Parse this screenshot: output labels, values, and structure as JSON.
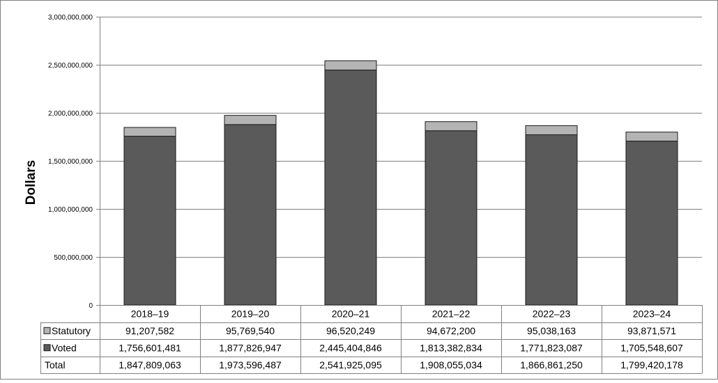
{
  "chart_data": {
    "type": "bar",
    "stacked": true,
    "ylabel": "Dollars",
    "ylim": [
      0,
      3000000000
    ],
    "yticks": [
      0,
      500000000,
      1000000000,
      1500000000,
      2000000000,
      2500000000,
      3000000000
    ],
    "ytick_labels": [
      "0",
      "500,000,000",
      "1,000,000,000",
      "1,500,000,000",
      "2,000,000,000",
      "2,500,000,000",
      "3,000,000,000"
    ],
    "grid": true,
    "legend_placement": "data-table-left",
    "categories": [
      "2018–19",
      "2019–20",
      "2020–21",
      "2021–22",
      "2022–23",
      "2023–24"
    ],
    "series": [
      {
        "name": "Voted",
        "color": "#5a5a5a",
        "values": [
          1756601481,
          1877826947,
          2445404846,
          1813382834,
          1771823087,
          1705548607
        ],
        "labels": [
          "1,756,601,481",
          "1,877,826,947",
          "2,445,404,846",
          "1,813,382,834",
          "1,771,823,087",
          "1,705,548,607"
        ]
      },
      {
        "name": "Statutory",
        "color": "#b4b4b4",
        "values": [
          91207582,
          95769540,
          96520249,
          94672200,
          95038163,
          93871571
        ],
        "labels": [
          "91,207,582",
          "95,769,540",
          "96,520,249",
          "94,672,200",
          "95,038,163",
          "93,871,571"
        ]
      }
    ],
    "totals": {
      "name": "Total",
      "labels": [
        "1,847,809,063",
        "1,973,596,487",
        "2,541,925,095",
        "1,908,055,034",
        "1,866,861,250",
        "1,799,420,178"
      ]
    }
  }
}
